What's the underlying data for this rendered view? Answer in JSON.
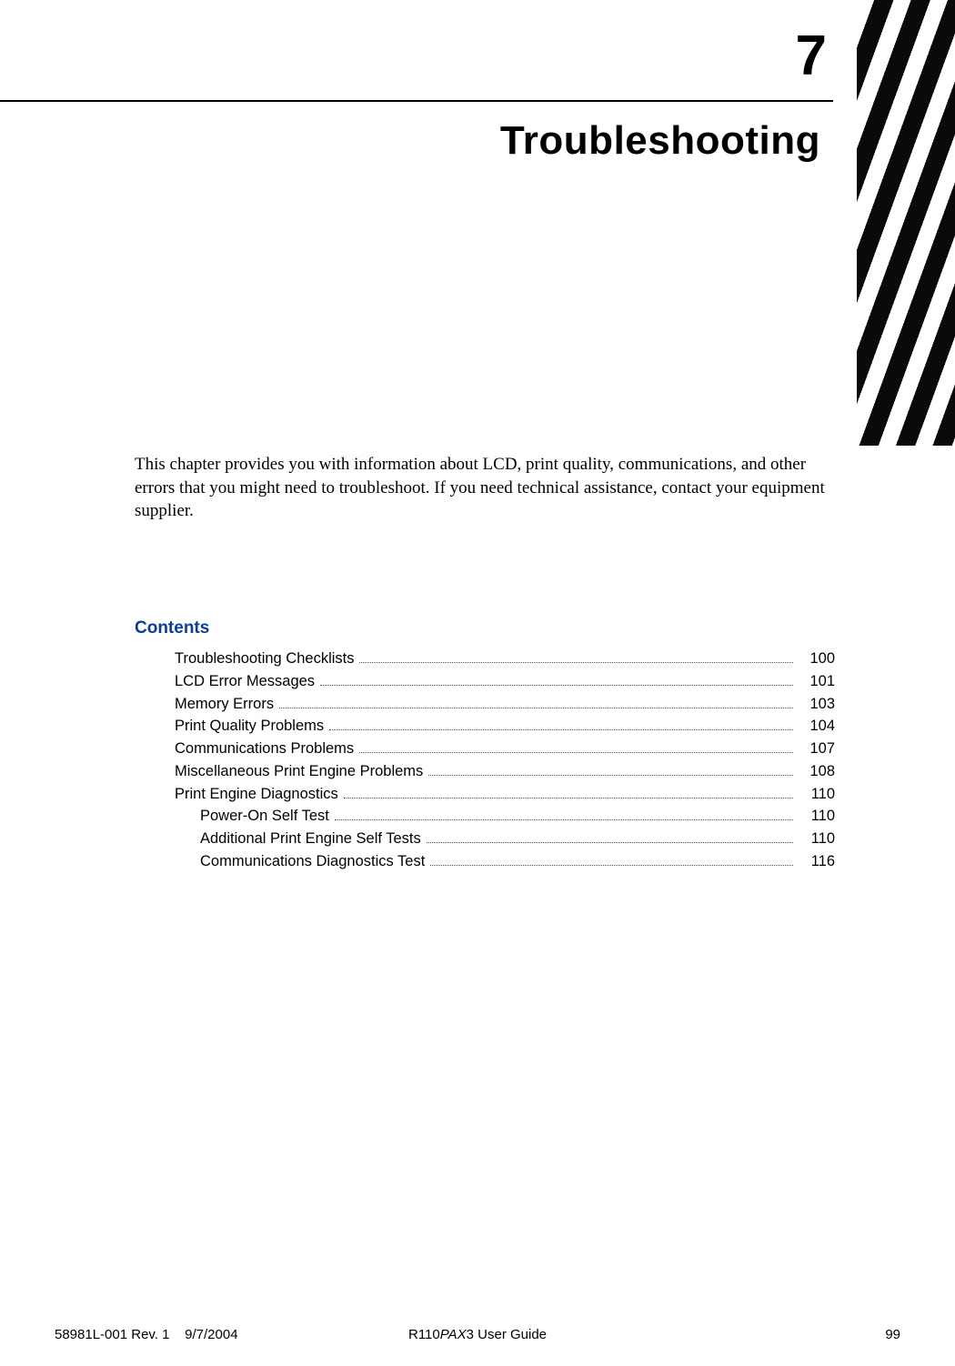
{
  "chapter": {
    "number": "7",
    "title": "Troubleshooting"
  },
  "colors": {
    "heading_blue": "#0a3da0",
    "text_black": "#000000",
    "page_background": "#ffffff",
    "stripe_dark": "#0a0a0a",
    "stripe_light": "#ffffff",
    "dot_leader": "#555555"
  },
  "typography": {
    "chapter_number_fontsize": 62,
    "chapter_title_fontsize": 44,
    "intro_font_family": "Times New Roman",
    "intro_fontsize": 19,
    "contents_heading_fontsize": 19,
    "toc_fontsize": 16.5,
    "footer_fontsize": 15
  },
  "intro_text": "This chapter provides you with information about LCD, print quality, communications, and other errors that you might need to troubleshoot. If you need technical assistance, contact your equipment supplier.",
  "contents_heading": "Contents",
  "toc": [
    {
      "label": "Troubleshooting Checklists",
      "page": "100",
      "indent": 1
    },
    {
      "label": "LCD Error Messages",
      "page": "101",
      "indent": 1
    },
    {
      "label": "Memory Errors",
      "page": "103",
      "indent": 1
    },
    {
      "label": "Print Quality Problems",
      "page": "104",
      "indent": 1
    },
    {
      "label": "Communications Problems",
      "page": "107",
      "indent": 1
    },
    {
      "label": "Miscellaneous Print Engine Problems",
      "page": "108",
      "indent": 1
    },
    {
      "label": "Print Engine Diagnostics",
      "page": "110",
      "indent": 1
    },
    {
      "label": "Power-On Self Test",
      "page": "110",
      "indent": 2
    },
    {
      "label": "Additional Print Engine Self Tests",
      "page": "110",
      "indent": 2
    },
    {
      "label": "Communications Diagnostics Test",
      "page": "116",
      "indent": 2
    }
  ],
  "footer": {
    "left_doc_id": "58981L-001 Rev. 1",
    "left_date": "9/7/2004",
    "center_prefix": "R110",
    "center_product_italic": "PAX",
    "center_suffix": "3 User Guide",
    "right_page": "99"
  }
}
